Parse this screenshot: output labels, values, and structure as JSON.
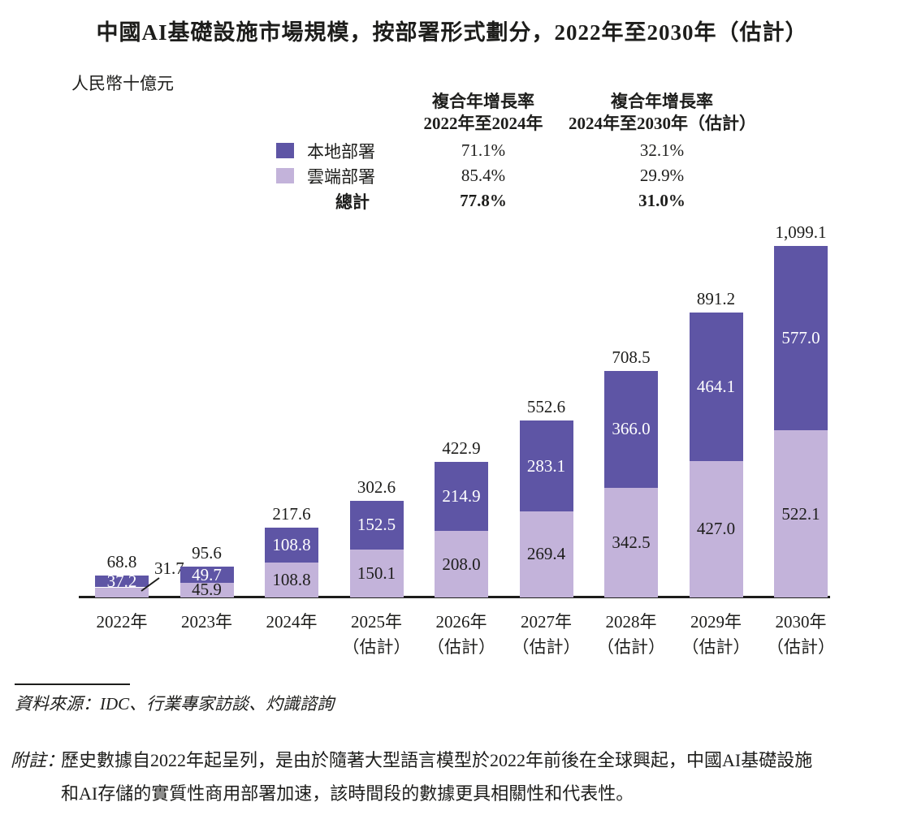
{
  "page": {
    "title": "中國AI基礎設施市場規模，按部署形式劃分，2022年至2030年（估計）",
    "unit_label": "人民幣十億元",
    "source_line": "資料來源：IDC、行業專家訪談、灼識諮詢",
    "note_label": "附註：",
    "note_lines": [
      "歷史數據自2022年起呈列，是由於隨著大型語言模型於2022年前後在全球興起，中國AI基礎設施",
      "和AI存儲的實質性商用部署加速，該時間段的數據更具相關性和代表性。"
    ]
  },
  "cagr_table": {
    "col1_header": [
      "複合年增長率",
      "2022年至2024年"
    ],
    "col2_header": [
      "複合年增長率",
      "2024年至2030年（估計）"
    ],
    "rows": [
      {
        "label": "本地部署",
        "swatch": "#5E55A5",
        "col1": "71.1%",
        "col2": "32.1%",
        "bold": false
      },
      {
        "label": "雲端部署",
        "swatch": "#C3B3DA",
        "col1": "85.4%",
        "col2": "29.9%",
        "bold": false
      },
      {
        "label": "總計",
        "swatch": null,
        "col1": "77.8%",
        "col2": "31.0%",
        "bold": true
      }
    ]
  },
  "chart_data": {
    "type": "bar",
    "stacked": true,
    "title": "中國AI基礎設施市場規模，按部署形式劃分，2022年至2030年（估計）",
    "ylabel": "人民幣十億元",
    "ylim": [
      0,
      1116
    ],
    "grid": false,
    "legend_position": "top",
    "categories": [
      [
        "2022年"
      ],
      [
        "2023年"
      ],
      [
        "2024年"
      ],
      [
        "2025年",
        "（估計）"
      ],
      [
        "2026年",
        "（估計）"
      ],
      [
        "2027年",
        "（估計）"
      ],
      [
        "2028年",
        "（估計）"
      ],
      [
        "2029年",
        "（估計）"
      ],
      [
        "2030年",
        "（估計）"
      ]
    ],
    "series": [
      {
        "name": "本地部署",
        "color": "#5E55A5",
        "label_color": "#ffffff",
        "values": [
          37.2,
          49.7,
          108.8,
          152.5,
          214.9,
          283.1,
          366.0,
          464.1,
          577.0
        ]
      },
      {
        "name": "雲端部署",
        "color": "#C3B3DA",
        "label_color": "#1d1d1b",
        "values": [
          31.7,
          45.9,
          108.8,
          150.1,
          208.0,
          269.4,
          342.5,
          427.0,
          522.1
        ]
      }
    ],
    "totals": [
      "68.8",
      "95.6",
      "217.6",
      "302.6",
      "422.9",
      "552.6",
      "708.5",
      "891.2",
      "1,099.1"
    ],
    "axis_color": "#1d1d1b"
  }
}
